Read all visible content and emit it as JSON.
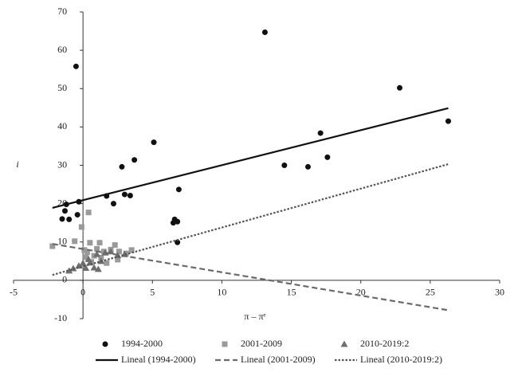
{
  "chart_data": {
    "type": "scatter",
    "xlabel": "π – πᵉ",
    "ylabel": "i",
    "xlim": [
      -5,
      30
    ],
    "ylim": [
      -10,
      70
    ],
    "xticks": [
      -5,
      0,
      5,
      10,
      15,
      20,
      25,
      30
    ],
    "yticks": [
      -10,
      0,
      10,
      20,
      30,
      40,
      50,
      60,
      70
    ],
    "grid": false,
    "series": [
      {
        "name": "1994-2000",
        "type": "scatter",
        "marker": "circle",
        "color": "#111111",
        "x": [
          -0.5,
          13.1,
          22.8,
          26.3,
          17.1,
          17.6,
          14.5,
          16.2,
          5.1,
          3.7,
          2.8,
          3.0,
          3.4,
          1.7,
          2.2,
          6.9,
          6.6,
          6.5,
          6.8,
          6.8,
          -1.5,
          -1.3,
          -1.2,
          -1.0,
          -0.4,
          -0.3
        ],
        "values": [
          55.8,
          64.7,
          50.2,
          41.5,
          38.4,
          32.1,
          30.0,
          29.6,
          36.0,
          31.4,
          29.6,
          22.4,
          22.1,
          22.0,
          20.0,
          23.7,
          15.9,
          15.0,
          15.3,
          9.9,
          16.0,
          18.1,
          19.8,
          15.9,
          17.1,
          20.5
        ]
      },
      {
        "name": "2001-2009",
        "type": "scatter",
        "marker": "square",
        "color": "#9a9a9a",
        "x": [
          -2.2,
          -0.6,
          -0.1,
          0.4,
          0.1,
          0.3,
          0.5,
          1.0,
          1.2,
          1.5,
          2.0,
          2.3,
          2.6,
          3.1,
          3.5,
          0.8,
          1.3,
          2.5,
          1.7,
          0.2,
          0.6
        ],
        "values": [
          8.9,
          10.2,
          13.9,
          17.7,
          7.9,
          7.3,
          9.8,
          8.2,
          9.8,
          7.5,
          8.0,
          9.2,
          7.5,
          7.0,
          7.9,
          6.4,
          5.9,
          5.4,
          4.5,
          6.0,
          4.8
        ]
      },
      {
        "name": "2010-2019:2",
        "type": "scatter",
        "marker": "triangle",
        "color": "#6e6e6e",
        "x": [
          -1.0,
          -0.7,
          -0.3,
          0.0,
          0.2,
          0.5,
          0.8,
          1.1,
          1.3,
          1.6,
          2.0,
          2.5,
          3.0,
          0.4,
          1.0
        ],
        "values": [
          2.5,
          3.1,
          3.8,
          4.5,
          3.2,
          4.6,
          3.3,
          2.9,
          5.0,
          7.2,
          7.5,
          6.5,
          6.8,
          5.5,
          6.8
        ]
      },
      {
        "name": "Lineal (1994-2000)",
        "type": "line",
        "dash": "solid",
        "color": "#111111",
        "x": [
          -2.2,
          26.3
        ],
        "values": [
          18.9,
          44.9
        ]
      },
      {
        "name": "Lineal (2001-2009)",
        "type": "line",
        "dash": "dashed",
        "color": "#6a6a6a",
        "x": [
          -2.2,
          26.3
        ],
        "values": [
          9.5,
          -7.8
        ]
      },
      {
        "name": "Lineal (2010-2019:2)",
        "type": "line",
        "dash": "dotted",
        "color": "#555555",
        "x": [
          -2.2,
          26.3
        ],
        "values": [
          1.4,
          30.3
        ]
      }
    ]
  }
}
